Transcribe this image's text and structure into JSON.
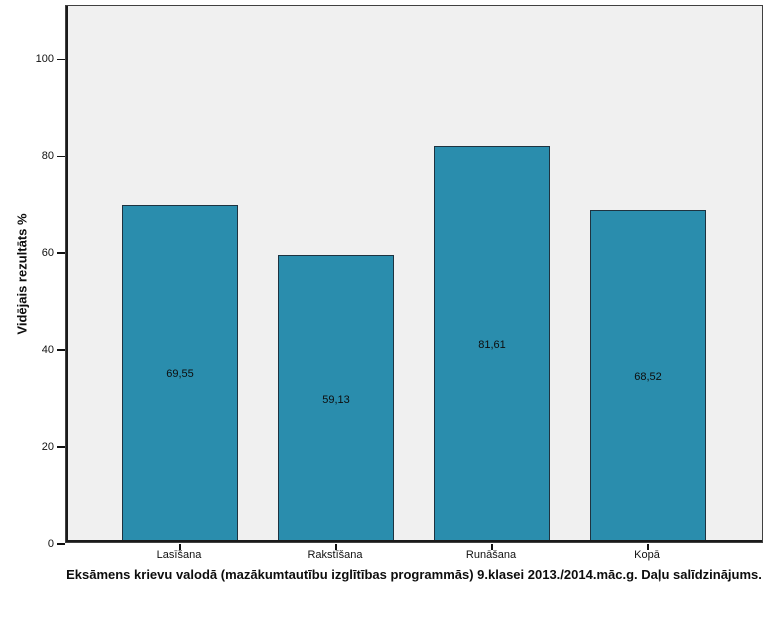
{
  "chart_data": {
    "type": "bar",
    "title": "Eksāmens krievu valodā (mazākumtautību izglītības programmās) 9.klasei 2013./2014.māc.g. Daļu salīdzinājums.",
    "ylabel": "Vidējais rezultāts %",
    "xlabel": "",
    "categories": [
      "Lasīšana",
      "Rakstīšana",
      "Runāšana",
      "Kopā"
    ],
    "values": [
      69.55,
      59.13,
      81.61,
      68.52
    ],
    "value_labels": [
      "69,55",
      "59,13",
      "81,61",
      "68,52"
    ],
    "yticks": [
      0,
      20,
      40,
      60,
      80,
      100
    ],
    "ytick_labels": [
      "0",
      "20",
      "40",
      "60",
      "80",
      "100"
    ],
    "ylim": [
      0,
      111
    ],
    "grid": false,
    "legend": false,
    "colors": {
      "bar_fill": "#2a8dad",
      "bar_border": "#1e3340",
      "plot_bg": "#f0f0f0",
      "plot_border": "#404040",
      "axis": "#1a1a1a",
      "text": "#0d0d0d",
      "page_bg": "#ffffff"
    }
  }
}
